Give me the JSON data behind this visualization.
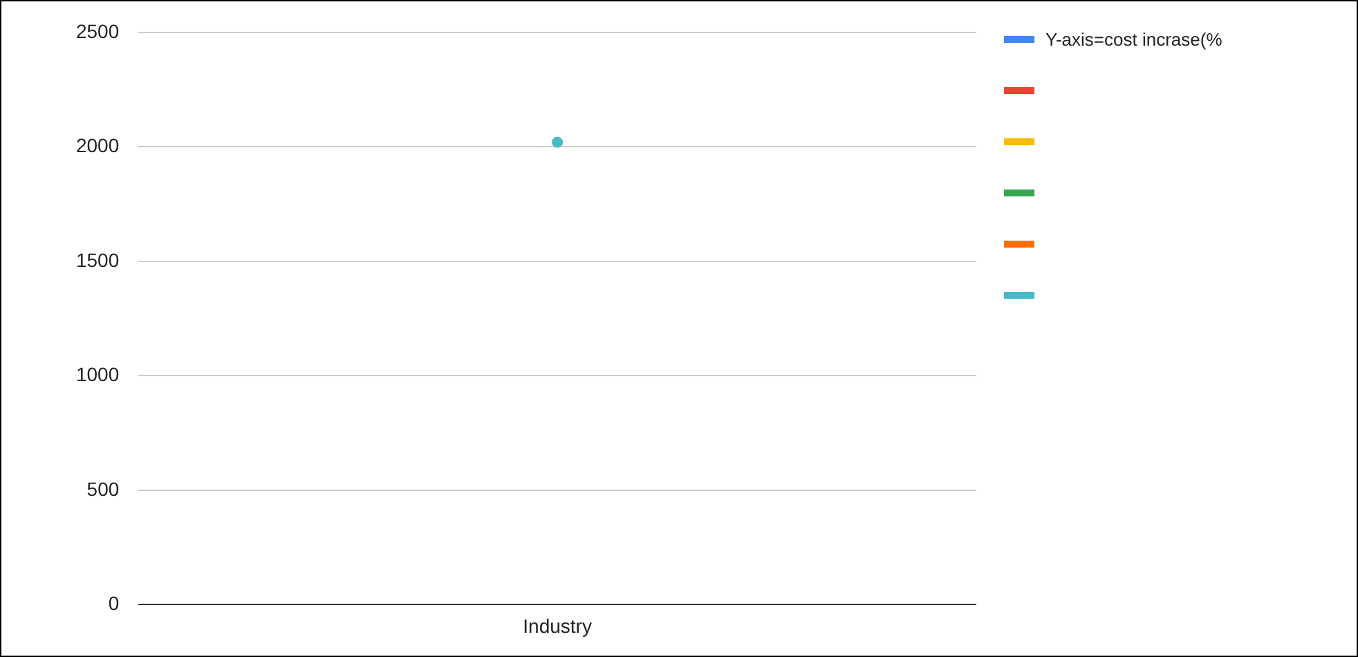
{
  "chart_data": {
    "type": "line",
    "categories": [
      "Industry"
    ],
    "series": [
      {
        "name": "Y-axis=cost incrase(%",
        "color": "#4285f4",
        "values": [
          null
        ]
      },
      {
        "color": "#ea4335",
        "values": [
          null
        ]
      },
      {
        "color": "#fbbc04",
        "values": [
          null
        ]
      },
      {
        "color": "#34a853",
        "values": [
          null
        ]
      },
      {
        "color": "#ff6d01",
        "values": [
          null
        ]
      },
      {
        "color": "#46bdc6",
        "values": [
          2020
        ]
      }
    ],
    "ylim": [
      0,
      2500
    ],
    "yticks": [
      0,
      500,
      1000,
      1500,
      2000,
      2500
    ],
    "grid": "y",
    "legend": "top right",
    "marker": "circle"
  }
}
